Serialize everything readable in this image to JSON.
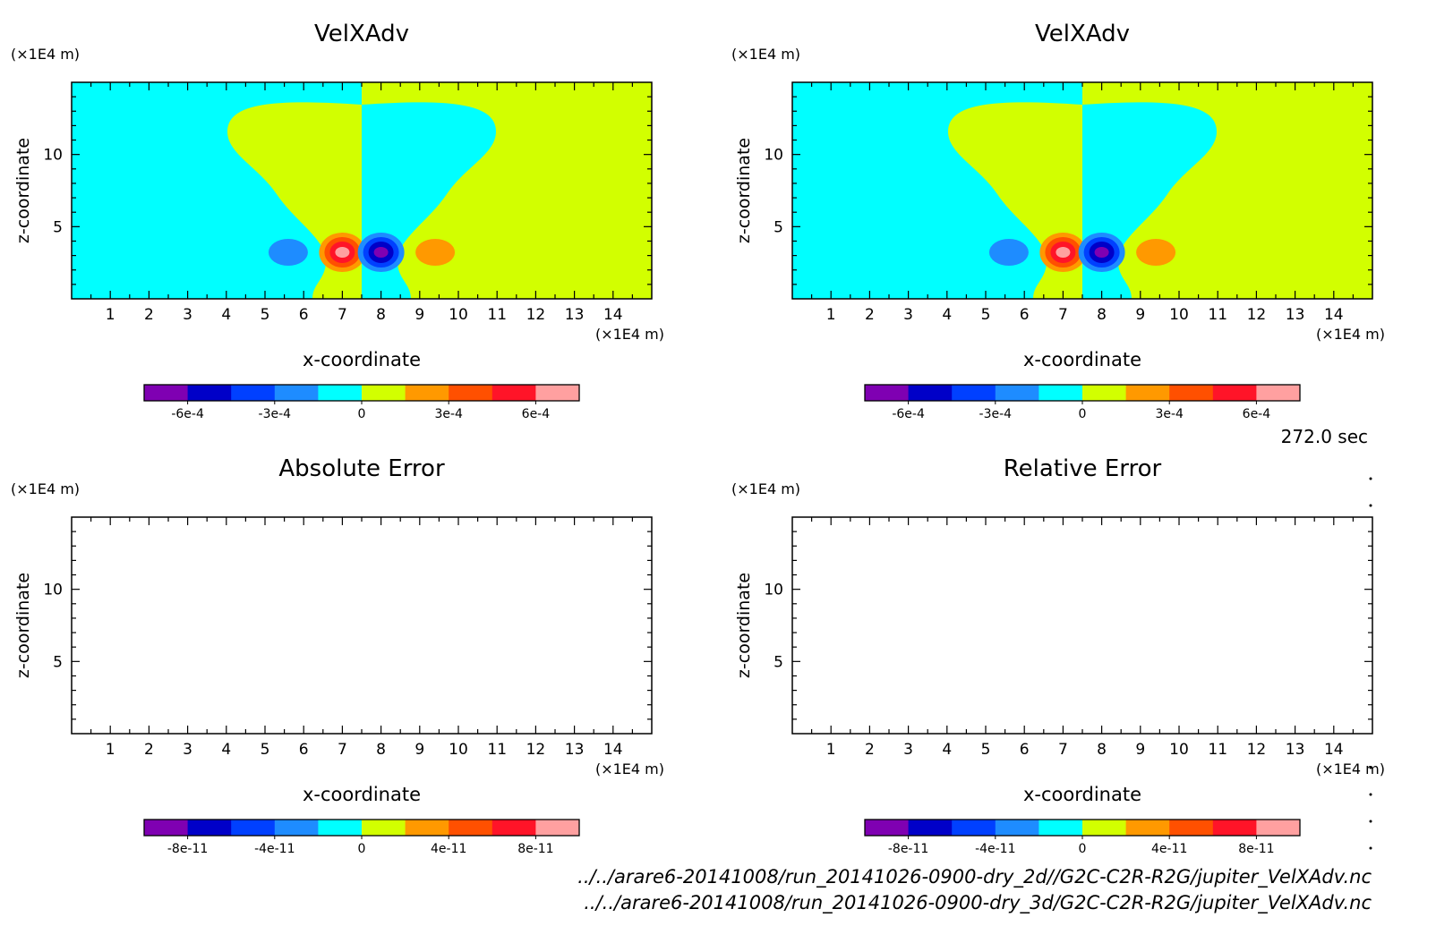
{
  "time_label": "272.0 sec",
  "files": [
    "../../arare6-20141008/run_20141026-0900-dry_2d//G2C-C2R-R2G/jupiter_VelXAdv.nc",
    "../../arare6-20141008/run_20141026-0900-dry_3d/G2C-C2R-R2G/jupiter_VelXAdv.nc"
  ],
  "palette": [
    "#7f00b2",
    "#0000c8",
    "#0040ff",
    "#1e8cff",
    "#00ffff",
    "#d2ff00",
    "#ff9900",
    "#ff5000",
    "#ff1428",
    "#ffa0a0"
  ],
  "chart_data": [
    {
      "type": "heatmap",
      "title": "VelXAdv",
      "xlabel": "x-coordinate",
      "ylabel": "z-coordinate",
      "xunit": "(×1E4 m)",
      "yunit": "(×1E4 m)",
      "xlim": [
        0,
        15
      ],
      "ylim": [
        0,
        15
      ],
      "xticks": [
        "1",
        "2",
        "3",
        "4",
        "5",
        "6",
        "7",
        "8",
        "9",
        "10",
        "11",
        "12",
        "13",
        "14"
      ],
      "yticks": [
        "5",
        "10"
      ],
      "colorbar": {
        "levels": [
          -0.00075,
          -0.0006,
          -0.00045,
          -0.0003,
          -0.00015,
          0,
          0.00015,
          0.0003,
          0.00045,
          0.0006,
          0.00075
        ],
        "tick_labels": [
          "-6e-4",
          "-3e-4",
          "0",
          "3e-4",
          "6e-4"
        ],
        "tick_values": [
          -0.0006,
          -0.0003,
          0,
          0.0003,
          0.0006
        ]
      }
    },
    {
      "type": "heatmap",
      "title": "VelXAdv",
      "xlabel": "x-coordinate",
      "ylabel": "z-coordinate",
      "xunit": "(×1E4 m)",
      "yunit": "(×1E4 m)",
      "xlim": [
        0,
        15
      ],
      "ylim": [
        0,
        15
      ],
      "xticks": [
        "1",
        "2",
        "3",
        "4",
        "5",
        "6",
        "7",
        "8",
        "9",
        "10",
        "11",
        "12",
        "13",
        "14"
      ],
      "yticks": [
        "5",
        "10"
      ],
      "colorbar": {
        "levels": [
          -0.00075,
          -0.0006,
          -0.00045,
          -0.0003,
          -0.00015,
          0,
          0.00015,
          0.0003,
          0.00045,
          0.0006,
          0.00075
        ],
        "tick_labels": [
          "-6e-4",
          "-3e-4",
          "0",
          "3e-4",
          "6e-4"
        ],
        "tick_values": [
          -0.0006,
          -0.0003,
          0,
          0.0003,
          0.0006
        ]
      }
    },
    {
      "type": "heatmap",
      "title": "Absolute Error",
      "xlabel": "x-coordinate",
      "ylabel": "z-coordinate",
      "xunit": "(×1E4 m)",
      "yunit": "(×1E4 m)",
      "xlim": [
        0,
        15
      ],
      "ylim": [
        0,
        15
      ],
      "xticks": [
        "1",
        "2",
        "3",
        "4",
        "5",
        "6",
        "7",
        "8",
        "9",
        "10",
        "11",
        "12",
        "13",
        "14"
      ],
      "yticks": [
        "5",
        "10"
      ],
      "colorbar": {
        "levels": [
          -1e-10,
          -8e-11,
          -6e-11,
          -4e-11,
          -2e-11,
          0,
          2e-11,
          4e-11,
          6e-11,
          8e-11,
          1e-10
        ],
        "tick_labels": [
          "-8e-11",
          "-4e-11",
          "0",
          "4e-11",
          "8e-11"
        ],
        "tick_values": [
          -8e-11,
          -4e-11,
          0,
          4e-11,
          8e-11
        ]
      }
    },
    {
      "type": "heatmap",
      "title": "Relative Error",
      "xlabel": "x-coordinate",
      "ylabel": "z-coordinate",
      "xunit": "(×1E4 m)",
      "yunit": "(×1E4 m)",
      "xlim": [
        0,
        15
      ],
      "ylim": [
        0,
        15
      ],
      "xticks": [
        "1",
        "2",
        "3",
        "4",
        "5",
        "6",
        "7",
        "8",
        "9",
        "10",
        "11",
        "12",
        "13",
        "14"
      ],
      "yticks": [
        "5",
        "10"
      ],
      "colorbar": {
        "levels": [
          -1e-10,
          -8e-11,
          -6e-11,
          -4e-11,
          -2e-11,
          0,
          2e-11,
          4e-11,
          6e-11,
          8e-11,
          1e-10
        ],
        "tick_labels": [
          "-8e-11",
          "-4e-11",
          "0",
          "4e-11",
          "8e-11"
        ],
        "tick_values": [
          -8e-11,
          -4e-11,
          0,
          4e-11,
          8e-11
        ]
      }
    }
  ]
}
